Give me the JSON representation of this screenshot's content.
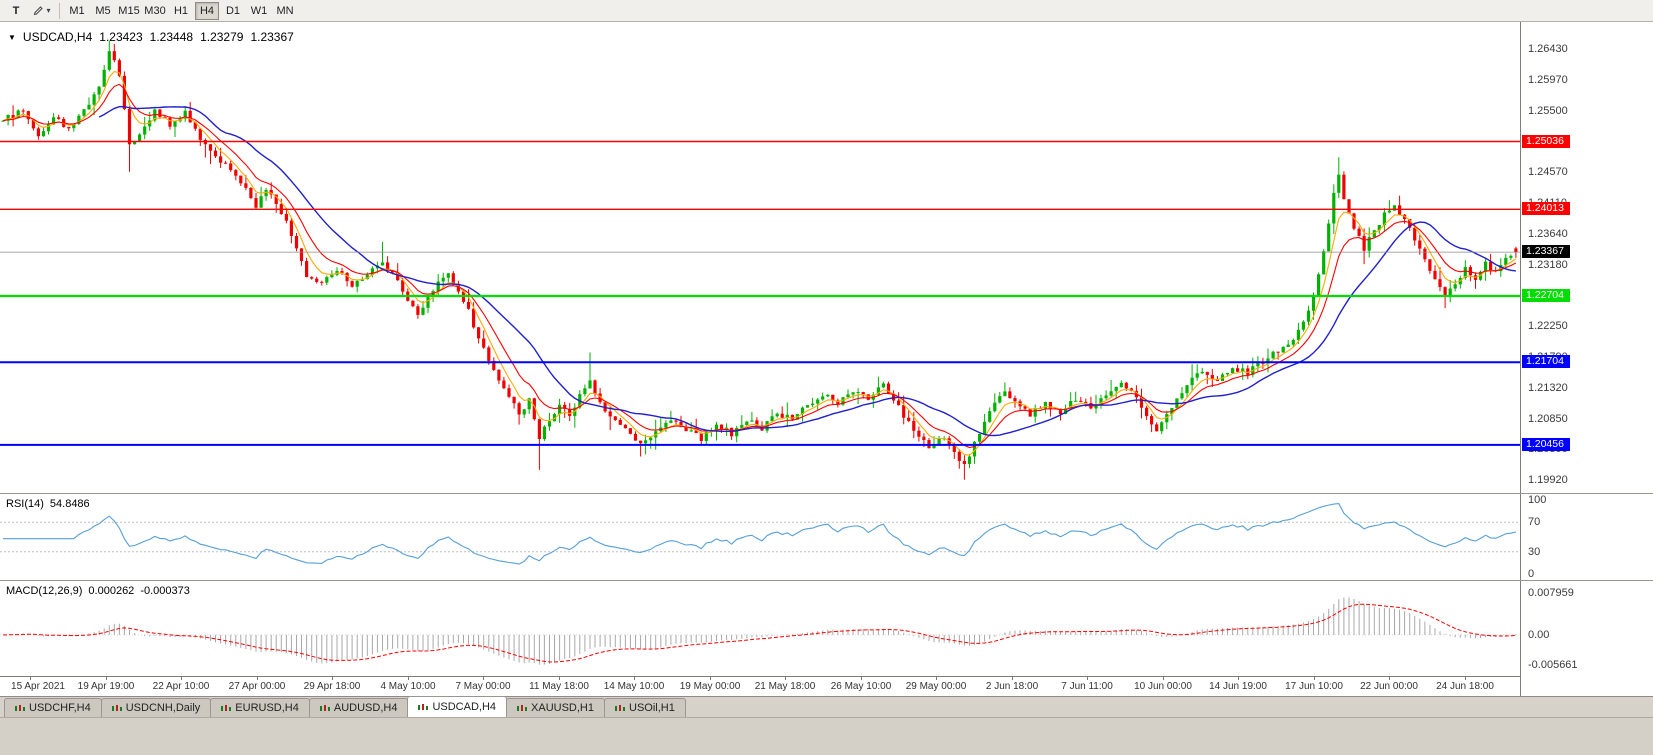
{
  "toolbar": {
    "t_label": "T",
    "timeframes": [
      "M1",
      "M5",
      "M15",
      "M30",
      "H1",
      "H4",
      "D1",
      "W1",
      "MN"
    ],
    "active_timeframe": "H4"
  },
  "chart_header": {
    "symbol": "USDCAD,H4",
    "open": "1.23423",
    "high": "1.23448",
    "low": "1.23279",
    "close": "1.23367"
  },
  "price_axis": {
    "ticks": [
      "1.26430",
      "1.25970",
      "1.25500",
      "1.25040",
      "1.24570",
      "1.24110",
      "1.23640",
      "1.23180",
      "1.22710",
      "1.22250",
      "1.21790",
      "1.21320",
      "1.20850",
      "1.20390",
      "1.19920"
    ]
  },
  "rsi": {
    "label": "RSI(14)",
    "value": "54.8486",
    "axis": [
      "100",
      "70",
      "30",
      "0"
    ],
    "upper_level": 70,
    "lower_level": 30
  },
  "macd": {
    "label": "MACD(12,26,9)",
    "value_main": "0.000262",
    "value_signal": "-0.000373",
    "axis_max": "0.007959",
    "axis_zero": "0.00",
    "axis_min": "-0.005661"
  },
  "time_axis": {
    "labels": [
      "15 Apr 2021",
      "19 Apr 19:00",
      "22 Apr 10:00",
      "27 Apr 00:00",
      "29 Apr 18:00",
      "4 May 10:00",
      "7 May 00:00",
      "11 May 18:00",
      "14 May 10:00",
      "19 May 00:00",
      "21 May 18:00",
      "26 May 10:00",
      "29 May 00:00",
      "2 Jun 18:00",
      "7 Jun 11:00",
      "10 Jun 00:00",
      "14 Jun 19:00",
      "17 Jun 10:00",
      "22 Jun 00:00",
      "24 Jun 18:00"
    ]
  },
  "tabs": [
    {
      "label": "USDCHF,H4",
      "active": false
    },
    {
      "label": "USDCNH,Daily",
      "active": false
    },
    {
      "label": "EURUSD,H4",
      "active": false
    },
    {
      "label": "AUDUSD,H4",
      "active": false
    },
    {
      "label": "USDCAD,H4",
      "active": true
    },
    {
      "label": "XAUUSD,H1",
      "active": false
    },
    {
      "label": "USOil,H1",
      "active": false
    }
  ],
  "chart_data": {
    "type": "candlestick",
    "symbol": "USDCAD",
    "timeframe": "H4",
    "n_candles": 300,
    "price_range": [
      1.1982,
      1.2672
    ],
    "current_price": {
      "value": 1.23367,
      "label": "1.23367"
    },
    "last_candle": {
      "open": 1.23423,
      "high": 1.23448,
      "low": 1.23279,
      "close": 1.23367
    },
    "levels": [
      {
        "name": "resistance-upper",
        "value": 1.25036,
        "label": "1.25036",
        "color": "#ff0000",
        "width": 1.4
      },
      {
        "name": "resistance-lower",
        "value": 1.24013,
        "label": "1.24013",
        "color": "#ff0000",
        "width": 1.4
      },
      {
        "name": "support-green",
        "value": 1.22704,
        "label": "1.22704",
        "color": "#00dd00",
        "width": 2.2
      },
      {
        "name": "support-blue-1",
        "value": 1.21704,
        "label": "1.21704",
        "color": "#0000ff",
        "width": 2
      },
      {
        "name": "support-blue-2",
        "value": 1.20456,
        "label": "1.20456",
        "color": "#0000ff",
        "width": 2
      }
    ],
    "moving_averages": [
      {
        "name": "fast",
        "type": "ema",
        "period": 5,
        "color": "#ffaa00"
      },
      {
        "name": "medium",
        "type": "ema",
        "period": 10,
        "color": "#ff0000"
      },
      {
        "name": "slow",
        "type": "sma",
        "period": 20,
        "color": "#2020cc"
      }
    ],
    "colors": {
      "up": "#00b200",
      "down": "#f00000",
      "ma_fast": "#ffaa00",
      "ma_medium": "#ff0000",
      "ma_slow": "#2020cc",
      "rsi": "#569fd6",
      "macd_hist": "#a8a8a8",
      "macd_signal": "#ff0000"
    },
    "anchors": [
      [
        0,
        1.2535
      ],
      [
        4,
        1.2552
      ],
      [
        7,
        1.2515
      ],
      [
        10,
        1.254
      ],
      [
        13,
        1.2522
      ],
      [
        16,
        1.2548
      ],
      [
        19,
        1.2585
      ],
      [
        21,
        1.2642
      ],
      [
        23,
        1.2605
      ],
      [
        25,
        1.2495
      ],
      [
        27,
        1.2515
      ],
      [
        30,
        1.2552
      ],
      [
        33,
        1.2528
      ],
      [
        36,
        1.2548
      ],
      [
        39,
        1.2508
      ],
      [
        42,
        1.2482
      ],
      [
        45,
        1.2458
      ],
      [
        48,
        1.2432
      ],
      [
        50,
        1.2406
      ],
      [
        52,
        1.2428
      ],
      [
        54,
        1.2412
      ],
      [
        56,
        1.2385
      ],
      [
        58,
        1.2338
      ],
      [
        60,
        1.2302
      ],
      [
        63,
        1.2292
      ],
      [
        66,
        1.2312
      ],
      [
        69,
        1.2288
      ],
      [
        72,
        1.2302
      ],
      [
        75,
        1.2322
      ],
      [
        78,
        1.2292
      ],
      [
        80,
        1.2262
      ],
      [
        82,
        1.2242
      ],
      [
        84,
        1.2268
      ],
      [
        86,
        1.2295
      ],
      [
        88,
        1.2302
      ],
      [
        90,
        1.2278
      ],
      [
        92,
        1.2248
      ],
      [
        94,
        1.2205
      ],
      [
        96,
        1.2172
      ],
      [
        98,
        1.2145
      ],
      [
        100,
        1.2118
      ],
      [
        102,
        1.2095
      ],
      [
        104,
        1.2112
      ],
      [
        106,
        1.2058
      ],
      [
        108,
        1.2085
      ],
      [
        110,
        1.2108
      ],
      [
        112,
        1.2092
      ],
      [
        114,
        1.212
      ],
      [
        116,
        1.2146
      ],
      [
        118,
        1.2108
      ],
      [
        120,
        1.2088
      ],
      [
        123,
        1.2072
      ],
      [
        126,
        1.2045
      ],
      [
        129,
        1.2062
      ],
      [
        132,
        1.2085
      ],
      [
        135,
        1.2068
      ],
      [
        138,
        1.2055
      ],
      [
        141,
        1.2078
      ],
      [
        144,
        1.2062
      ],
      [
        147,
        1.2085
      ],
      [
        150,
        1.207
      ],
      [
        153,
        1.2092
      ],
      [
        156,
        1.2085
      ],
      [
        159,
        1.2105
      ],
      [
        162,
        1.2122
      ],
      [
        165,
        1.2108
      ],
      [
        168,
        1.2128
      ],
      [
        171,
        1.2118
      ],
      [
        174,
        1.2135
      ],
      [
        177,
        1.2102
      ],
      [
        180,
        1.2068
      ],
      [
        183,
        1.2042
      ],
      [
        186,
        1.2055
      ],
      [
        188,
        1.2032
      ],
      [
        190,
        1.2015
      ],
      [
        192,
        1.2048
      ],
      [
        194,
        1.208
      ],
      [
        196,
        1.2105
      ],
      [
        198,
        1.2125
      ],
      [
        200,
        1.2108
      ],
      [
        203,
        1.2092
      ],
      [
        206,
        1.211
      ],
      [
        209,
        1.2095
      ],
      [
        212,
        1.2115
      ],
      [
        215,
        1.2102
      ],
      [
        218,
        1.2122
      ],
      [
        221,
        1.2138
      ],
      [
        224,
        1.2118
      ],
      [
        226,
        1.2092
      ],
      [
        228,
        1.2068
      ],
      [
        230,
        1.2088
      ],
      [
        232,
        1.2115
      ],
      [
        234,
        1.214
      ],
      [
        237,
        1.2158
      ],
      [
        240,
        1.2142
      ],
      [
        243,
        1.2162
      ],
      [
        246,
        1.2155
      ],
      [
        249,
        1.2172
      ],
      [
        252,
        1.2188
      ],
      [
        255,
        1.2205
      ],
      [
        257,
        1.2228
      ],
      [
        259,
        1.2268
      ],
      [
        261,
        1.2335
      ],
      [
        263,
        1.2425
      ],
      [
        264,
        1.2452
      ],
      [
        265,
        1.2418
      ],
      [
        267,
        1.2372
      ],
      [
        269,
        1.2342
      ],
      [
        271,
        1.2368
      ],
      [
        273,
        1.2392
      ],
      [
        275,
        1.2403
      ],
      [
        277,
        1.2386
      ],
      [
        279,
        1.2356
      ],
      [
        281,
        1.2322
      ],
      [
        283,
        1.2295
      ],
      [
        285,
        1.2272
      ],
      [
        287,
        1.229
      ],
      [
        289,
        1.2312
      ],
      [
        291,
        1.2296
      ],
      [
        293,
        1.2318
      ],
      [
        295,
        1.2308
      ],
      [
        297,
        1.2328
      ],
      [
        299,
        1.23367
      ]
    ],
    "wick_events": [
      {
        "i": 21,
        "high": 1.2656
      },
      {
        "i": 25,
        "low": 1.2458
      },
      {
        "i": 75,
        "high": 1.2352
      },
      {
        "i": 94,
        "high": 1.2212
      },
      {
        "i": 106,
        "low": 1.2008
      },
      {
        "i": 116,
        "high": 1.2185
      },
      {
        "i": 126,
        "low": 1.2028
      },
      {
        "i": 190,
        "low": 1.1993
      },
      {
        "i": 264,
        "high": 1.248
      },
      {
        "i": 285,
        "low": 1.2252
      }
    ]
  }
}
